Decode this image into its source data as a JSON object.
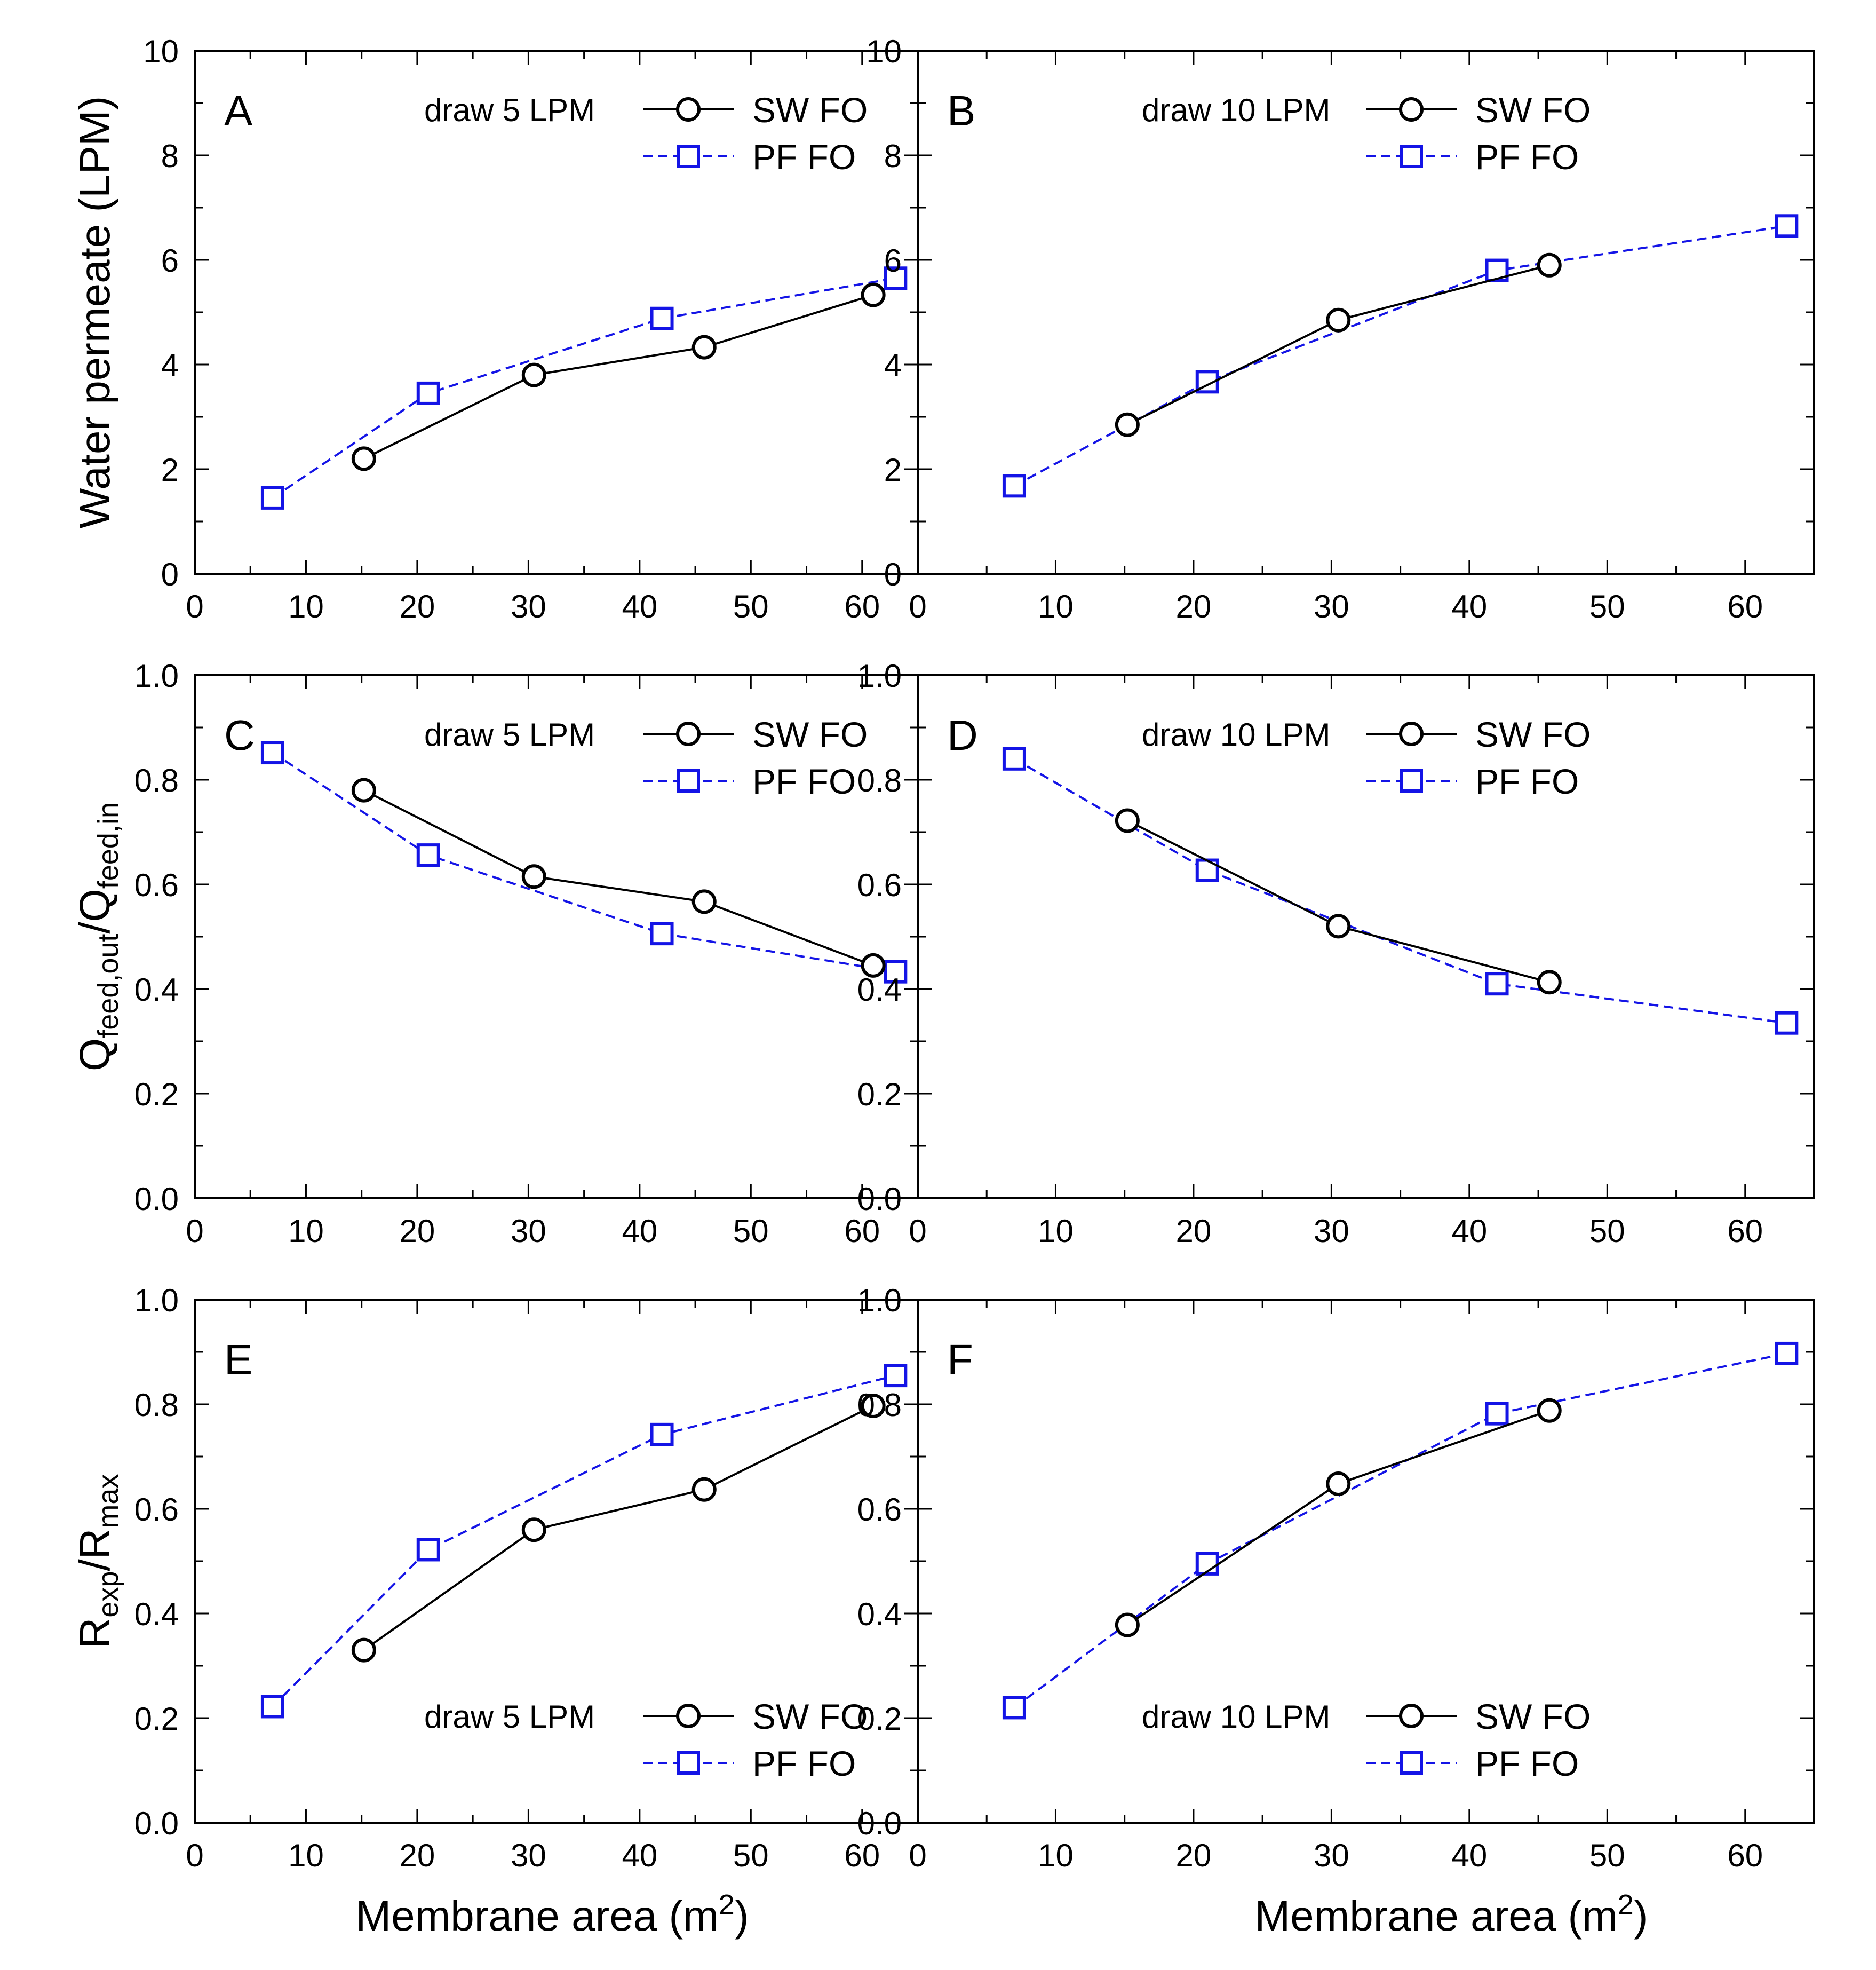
{
  "figure": {
    "x_axis_title": {
      "main": "Membrane area (m",
      "sup": "2",
      "end": ")"
    },
    "y_axis_titles": {
      "row1": {
        "main": "Water permeate (LPM)"
      },
      "row2": {
        "q1": "Q",
        "sub1": "feed,out",
        "slash": "/Q",
        "sub2": "feed,in"
      },
      "row3": {
        "r1": "R",
        "sub1": "exp",
        "slash": "/R",
        "sub2": "max"
      }
    },
    "series_styles": {
      "sw": {
        "color": "#000000",
        "marker": "circle",
        "line": "solid"
      },
      "pf": {
        "color": "#1414e6",
        "marker": "square",
        "line": "dashed"
      }
    }
  },
  "chart_data": [
    {
      "type": "line",
      "panel": "A",
      "draw_label": "draw 5 LPM",
      "legend_position": "top-right",
      "xlim": [
        0,
        65
      ],
      "ylim": [
        0,
        10
      ],
      "x_ticks": [
        "0",
        "10",
        "20",
        "30",
        "40",
        "50",
        "60"
      ],
      "y_ticks": [
        "0",
        "2",
        "4",
        "6",
        "8",
        "10"
      ],
      "series": [
        {
          "name": "SW FO",
          "x": [
            15.2,
            30.5,
            45.8,
            61.0
          ],
          "y": [
            2.2,
            3.8,
            4.33,
            5.33
          ]
        },
        {
          "name": "PF FO",
          "x": [
            7.0,
            21.0,
            42.0,
            63.0
          ],
          "y": [
            1.45,
            3.45,
            4.88,
            5.65
          ]
        }
      ]
    },
    {
      "type": "line",
      "panel": "B",
      "draw_label": "draw 10 LPM",
      "legend_position": "top-right",
      "xlim": [
        0,
        65
      ],
      "ylim": [
        0,
        10
      ],
      "x_ticks": [
        "0",
        "10",
        "20",
        "30",
        "40",
        "50",
        "60"
      ],
      "y_ticks": [
        "0",
        "2",
        "4",
        "6",
        "8",
        "10"
      ],
      "series": [
        {
          "name": "SW FO",
          "x": [
            15.2,
            30.5,
            45.8
          ],
          "y": [
            2.85,
            4.85,
            5.9
          ]
        },
        {
          "name": "PF FO",
          "x": [
            7.0,
            21.0,
            42.0,
            63.0
          ],
          "y": [
            1.68,
            3.67,
            5.8,
            6.65
          ]
        }
      ]
    },
    {
      "type": "line",
      "panel": "C",
      "draw_label": "draw 5 LPM",
      "legend_position": "top-right",
      "xlim": [
        0,
        65
      ],
      "ylim": [
        0,
        1.0
      ],
      "x_ticks": [
        "0",
        "10",
        "20",
        "30",
        "40",
        "50",
        "60"
      ],
      "y_ticks": [
        "0.0",
        "0.2",
        "0.4",
        "0.6",
        "0.8",
        "1.0"
      ],
      "series": [
        {
          "name": "SW FO",
          "x": [
            15.2,
            30.5,
            45.8,
            61.0
          ],
          "y": [
            0.78,
            0.615,
            0.567,
            0.445
          ]
        },
        {
          "name": "PF FO",
          "x": [
            7.0,
            21.0,
            42.0,
            63.0
          ],
          "y": [
            0.852,
            0.656,
            0.506,
            0.433
          ]
        }
      ]
    },
    {
      "type": "line",
      "panel": "D",
      "draw_label": "draw 10 LPM",
      "legend_position": "top-right",
      "xlim": [
        0,
        65
      ],
      "ylim": [
        0,
        1.0
      ],
      "x_ticks": [
        "0",
        "10",
        "20",
        "30",
        "40",
        "50",
        "60"
      ],
      "y_ticks": [
        "0.0",
        "0.2",
        "0.4",
        "0.6",
        "0.8",
        "1.0"
      ],
      "series": [
        {
          "name": "SW FO",
          "x": [
            15.2,
            30.5,
            45.8
          ],
          "y": [
            0.722,
            0.52,
            0.413
          ]
        },
        {
          "name": "PF FO",
          "x": [
            7.0,
            21.0,
            42.0,
            63.0
          ],
          "y": [
            0.84,
            0.627,
            0.41,
            0.335
          ]
        }
      ]
    },
    {
      "type": "line",
      "panel": "E",
      "draw_label": "draw 5 LPM",
      "legend_position": "bottom-right",
      "xlim": [
        0,
        65
      ],
      "ylim": [
        0,
        1.0
      ],
      "x_ticks": [
        "0",
        "10",
        "20",
        "30",
        "40",
        "50",
        "60"
      ],
      "y_ticks": [
        "0.0",
        "0.2",
        "0.4",
        "0.6",
        "0.8",
        "1.0"
      ],
      "series": [
        {
          "name": "SW FO",
          "x": [
            15.2,
            30.5,
            45.8,
            61.0
          ],
          "y": [
            0.33,
            0.56,
            0.637,
            0.797
          ]
        },
        {
          "name": "PF FO",
          "x": [
            7.0,
            21.0,
            42.0,
            63.0
          ],
          "y": [
            0.222,
            0.522,
            0.742,
            0.855
          ]
        }
      ]
    },
    {
      "type": "line",
      "panel": "F",
      "draw_label": "draw 10 LPM",
      "legend_position": "bottom-right",
      "xlim": [
        0,
        65
      ],
      "ylim": [
        0,
        1.0
      ],
      "x_ticks": [
        "0",
        "10",
        "20",
        "30",
        "40",
        "50",
        "60"
      ],
      "y_ticks": [
        "0.0",
        "0.2",
        "0.4",
        "0.6",
        "0.8",
        "1.0"
      ],
      "series": [
        {
          "name": "SW FO",
          "x": [
            15.2,
            30.5,
            45.8
          ],
          "y": [
            0.378,
            0.648,
            0.788
          ]
        },
        {
          "name": "PF FO",
          "x": [
            7.0,
            21.0,
            42.0,
            63.0
          ],
          "y": [
            0.22,
            0.495,
            0.782,
            0.897
          ]
        }
      ]
    }
  ]
}
